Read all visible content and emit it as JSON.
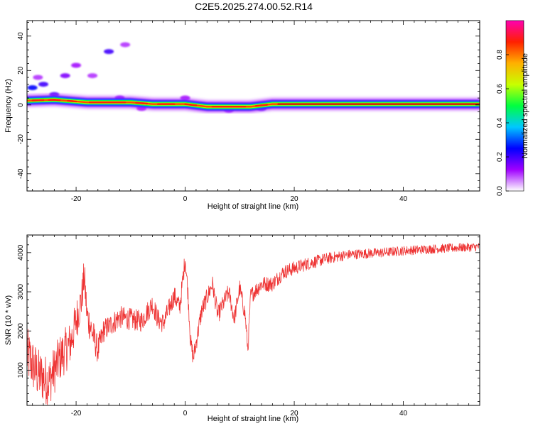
{
  "title": "C2E5.2025.274.00.52.R14",
  "chart_data": [
    {
      "type": "heatmap",
      "name": "spectrogram",
      "xlabel": "Height of straight line (km)",
      "ylabel": "Frequency (Hz)",
      "xlim": [
        -29,
        54
      ],
      "ylim": [
        -50,
        49
      ],
      "xticks": [
        -20,
        0,
        20,
        40
      ],
      "yticks": [
        -40,
        -20,
        0,
        20,
        40
      ],
      "colorbar": {
        "label": "Normalized spectral amplitude",
        "range": [
          0,
          1
        ],
        "ticks": [
          "0.0",
          "0.2",
          "0.4",
          "0.6",
          "0.8"
        ],
        "tick_values": [
          0.0,
          0.2,
          0.4,
          0.6,
          0.8
        ],
        "colors": [
          "#ffffff",
          "#a000ff",
          "#0000ff",
          "#00c8ff",
          "#00ff40",
          "#c8ff00",
          "#ffb000",
          "#ff2000",
          "#ff00b0"
        ]
      },
      "main_band": [
        {
          "x": -29,
          "y": 2.5
        },
        {
          "x": -24,
          "y": 3
        },
        {
          "x": -20,
          "y": 2
        },
        {
          "x": -18,
          "y": 1.5
        },
        {
          "x": -10,
          "y": 1.5
        },
        {
          "x": -6,
          "y": 0.5
        },
        {
          "x": 0,
          "y": 0.5
        },
        {
          "x": 4,
          "y": -1
        },
        {
          "x": 12,
          "y": -1
        },
        {
          "x": 16,
          "y": 0.5
        },
        {
          "x": 22,
          "y": 0.5
        },
        {
          "x": 54,
          "y": 0.5
        }
      ],
      "blobs": [
        {
          "x": -28,
          "y": 10,
          "value": 0.25
        },
        {
          "x": -26,
          "y": 12,
          "value": 0.2
        },
        {
          "x": -22,
          "y": 17,
          "value": 0.15
        },
        {
          "x": -20,
          "y": 23,
          "value": 0.12
        },
        {
          "x": -17,
          "y": 17,
          "value": 0.1
        },
        {
          "x": -14,
          "y": 31,
          "value": 0.2
        },
        {
          "x": -11,
          "y": 35,
          "value": 0.1
        },
        {
          "x": -27,
          "y": 16,
          "value": 0.1
        },
        {
          "x": -24,
          "y": 6,
          "value": 0.2
        },
        {
          "x": -12,
          "y": 4,
          "value": 0.15
        },
        {
          "x": 0,
          "y": 4,
          "value": 0.12
        },
        {
          "x": 8,
          "y": -3,
          "value": 0.15
        },
        {
          "x": 14,
          "y": -2,
          "value": 0.2
        },
        {
          "x": -8,
          "y": -2,
          "value": 0.12
        }
      ]
    },
    {
      "type": "line",
      "name": "snr",
      "xlabel": "Height of straight line (km)",
      "ylabel": "SNR (10 * v/v)",
      "xlim": [
        -29,
        54
      ],
      "ylim": [
        100,
        4450
      ],
      "xticks": [
        -20,
        0,
        20,
        40
      ],
      "yticks": [
        1000,
        2000,
        3000,
        4000
      ],
      "series_color": "#ee3333",
      "trend": [
        {
          "x": -29,
          "y": 1400
        },
        {
          "x": -27,
          "y": 900
        },
        {
          "x": -25,
          "y": 700
        },
        {
          "x": -23,
          "y": 1300
        },
        {
          "x": -21,
          "y": 1700
        },
        {
          "x": -19,
          "y": 2800
        },
        {
          "x": -18.5,
          "y": 3400
        },
        {
          "x": -18,
          "y": 2400
        },
        {
          "x": -16,
          "y": 1500
        },
        {
          "x": -15,
          "y": 2000
        },
        {
          "x": -12,
          "y": 2350
        },
        {
          "x": -8,
          "y": 2250
        },
        {
          "x": -6,
          "y": 2700
        },
        {
          "x": -5,
          "y": 2300
        },
        {
          "x": -4,
          "y": 2200
        },
        {
          "x": -2,
          "y": 2900
        },
        {
          "x": -1,
          "y": 2600
        },
        {
          "x": 0,
          "y": 3850
        },
        {
          "x": 0.5,
          "y": 3000
        },
        {
          "x": 1,
          "y": 1700
        },
        {
          "x": 1.5,
          "y": 1300
        },
        {
          "x": 3,
          "y": 2500
        },
        {
          "x": 5,
          "y": 3200
        },
        {
          "x": 6,
          "y": 2400
        },
        {
          "x": 8,
          "y": 3000
        },
        {
          "x": 9,
          "y": 2300
        },
        {
          "x": 10,
          "y": 3100
        },
        {
          "x": 11,
          "y": 2400
        },
        {
          "x": 11.5,
          "y": 1500
        },
        {
          "x": 12,
          "y": 2900
        },
        {
          "x": 14,
          "y": 3200
        },
        {
          "x": 16,
          "y": 3200
        },
        {
          "x": 18,
          "y": 3500
        },
        {
          "x": 22,
          "y": 3700
        },
        {
          "x": 26,
          "y": 3850
        },
        {
          "x": 30,
          "y": 3950
        },
        {
          "x": 36,
          "y": 4000
        },
        {
          "x": 40,
          "y": 4050
        },
        {
          "x": 46,
          "y": 4100
        },
        {
          "x": 54,
          "y": 4150
        }
      ],
      "noise": [
        {
          "x": -29,
          "amp": 700
        },
        {
          "x": -20,
          "amp": 550
        },
        {
          "x": -15,
          "amp": 300
        },
        {
          "x": 0,
          "amp": 250
        },
        {
          "x": 10,
          "amp": 220
        },
        {
          "x": 20,
          "amp": 180
        },
        {
          "x": 30,
          "amp": 130
        },
        {
          "x": 54,
          "amp": 110
        }
      ]
    }
  ]
}
